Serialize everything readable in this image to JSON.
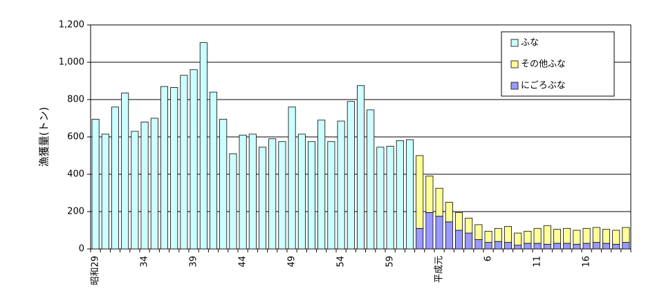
{
  "chart_data": {
    "type": "bar",
    "stacked": true,
    "title": "",
    "xlabel": "",
    "ylabel": "漁獲量(トン)",
    "ylim": [
      0,
      1200
    ],
    "yticks": [
      "0",
      "200",
      "400",
      "600",
      "800",
      "1,000",
      "1,200"
    ],
    "ytick_values": [
      0,
      200,
      400,
      600,
      800,
      1000,
      1200
    ],
    "grid": true,
    "legend_position": "top-right",
    "x_tick_labels": [
      {
        "index": 0,
        "label": "昭和29"
      },
      {
        "index": 5,
        "label": "34"
      },
      {
        "index": 10,
        "label": "39"
      },
      {
        "index": 15,
        "label": "44"
      },
      {
        "index": 20,
        "label": "49"
      },
      {
        "index": 25,
        "label": "54"
      },
      {
        "index": 30,
        "label": "59"
      },
      {
        "index": 35,
        "label": "平成元"
      },
      {
        "index": 40,
        "label": "6"
      },
      {
        "index": 45,
        "label": "11"
      },
      {
        "index": 50,
        "label": "16"
      }
    ],
    "categories": [
      "昭和29",
      "30",
      "31",
      "32",
      "33",
      "34",
      "35",
      "36",
      "37",
      "38",
      "39",
      "40",
      "41",
      "42",
      "43",
      "44",
      "45",
      "46",
      "47",
      "48",
      "49",
      "50",
      "51",
      "52",
      "53",
      "54",
      "55",
      "56",
      "57",
      "58",
      "59",
      "60",
      "61",
      "62",
      "63",
      "平成元",
      "2",
      "3",
      "4",
      "5",
      "6",
      "7",
      "8",
      "9",
      "10",
      "11",
      "12",
      "13",
      "14",
      "15",
      "16",
      "17",
      "18",
      "19",
      "20"
    ],
    "series": [
      {
        "name": "にごろぶな",
        "color": "#9999ff",
        "values": [
          0,
          0,
          0,
          0,
          0,
          0,
          0,
          0,
          0,
          0,
          0,
          0,
          0,
          0,
          0,
          0,
          0,
          0,
          0,
          0,
          0,
          0,
          0,
          0,
          0,
          0,
          0,
          0,
          0,
          0,
          0,
          0,
          0,
          110,
          195,
          175,
          145,
          100,
          85,
          50,
          35,
          40,
          35,
          20,
          30,
          30,
          25,
          30,
          30,
          25,
          30,
          35,
          30,
          25,
          35
        ]
      },
      {
        "name": "その他ふな",
        "color": "#ffff99",
        "values": [
          0,
          0,
          0,
          0,
          0,
          0,
          0,
          0,
          0,
          0,
          0,
          0,
          0,
          0,
          0,
          0,
          0,
          0,
          0,
          0,
          0,
          0,
          0,
          0,
          0,
          0,
          0,
          0,
          0,
          0,
          0,
          0,
          0,
          390,
          195,
          150,
          105,
          95,
          80,
          80,
          60,
          70,
          85,
          65,
          65,
          80,
          100,
          75,
          80,
          75,
          80,
          80,
          75,
          75,
          80
        ]
      },
      {
        "name": "ふな",
        "color": "#ccffff",
        "values": [
          695,
          615,
          760,
          835,
          630,
          680,
          700,
          870,
          865,
          930,
          960,
          1105,
          840,
          695,
          510,
          610,
          615,
          545,
          590,
          575,
          760,
          615,
          575,
          690,
          575,
          685,
          790,
          875,
          745,
          545,
          550,
          580,
          585,
          0,
          0,
          0,
          0,
          0,
          0,
          0,
          0,
          0,
          0,
          0,
          0,
          0,
          0,
          0,
          0,
          0,
          0,
          0,
          0,
          0,
          0
        ]
      }
    ],
    "legend": [
      "ふな",
      "その他ふな",
      "にごろぶな"
    ]
  }
}
